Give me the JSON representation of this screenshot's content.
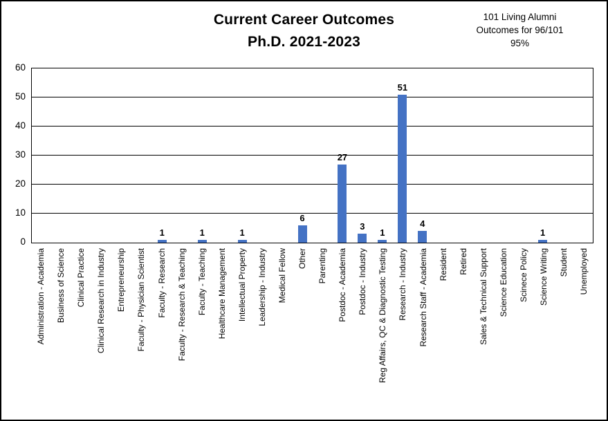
{
  "title": {
    "line1": "Current Career Outcomes",
    "line2": "Ph.D. 2021-2023"
  },
  "annotation": {
    "line1": "101 Living Alumni",
    "line2": "Outcomes for 96/101",
    "line3": "95%"
  },
  "chart_data": {
    "type": "bar",
    "title": "Current Career Outcomes Ph.D. 2021-2023",
    "xlabel": "",
    "ylabel": "",
    "ylim": [
      0,
      60
    ],
    "yticks": [
      0,
      10,
      20,
      30,
      40,
      50,
      60
    ],
    "grid": true,
    "legend": false,
    "bar_color": "#4472C4",
    "data_label_rule": "shown only for non-zero bars",
    "categories": [
      "Administration - Academia",
      "Business of Science",
      "Clinical Practice",
      "Clinical Research in Industry",
      "Entrepreneurship",
      "Faculty - Physician Scientist",
      "Faculty - Research",
      "Faculty - Research & Teaching",
      "Faculty - Teaching",
      "Healthcare Management",
      "Intellectual Property",
      "Leadership - Industry",
      "Medical Fellow",
      "Other",
      "Parenting",
      "Postdoc - Academia",
      "Postdoc - Industry",
      "Reg Affairs, QC & Diagnostic Testing",
      "Research - Industry",
      "Research Staff - Academia",
      "Resident",
      "Retired",
      "Sales & Technical Support",
      "Science Education",
      "Scinece Policy",
      "Science Writing",
      "Student",
      "Unemployed"
    ],
    "values": [
      0,
      0,
      0,
      0,
      0,
      0,
      1,
      0,
      1,
      0,
      1,
      0,
      0,
      6,
      0,
      27,
      3,
      1,
      51,
      4,
      0,
      0,
      0,
      0,
      0,
      1,
      0,
      0
    ]
  }
}
